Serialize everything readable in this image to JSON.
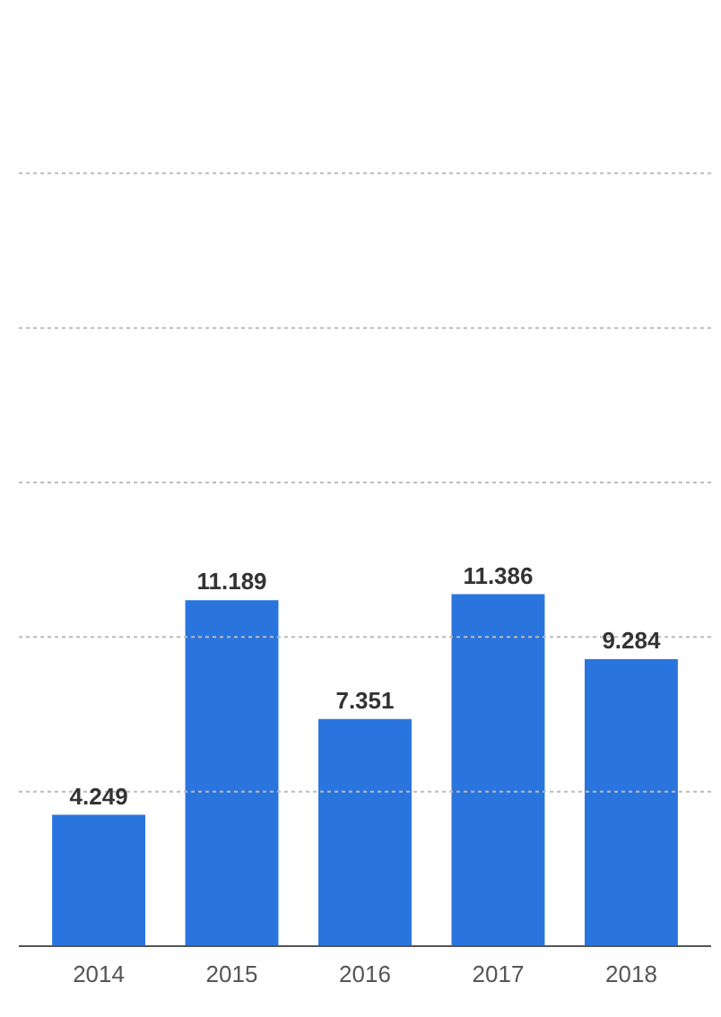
{
  "chart_data": {
    "type": "bar",
    "categories": [
      "2014",
      "2015",
      "2016",
      "2017",
      "2018"
    ],
    "values": [
      4.249,
      11.189,
      7.351,
      11.386,
      9.284
    ],
    "color": "#2a74de",
    "data_labels": true,
    "ref_lines": [
      {
        "axis": "y",
        "value": 5,
        "color": "#bbbbbb",
        "line_style": "dashed"
      },
      {
        "axis": "y",
        "value": 10,
        "color": "#bbbbbb",
        "line_style": "dashed"
      },
      {
        "axis": "y",
        "value": 15,
        "color": "#bbbbbb",
        "line_style": "dashed"
      },
      {
        "axis": "y",
        "value": 20,
        "color": "#bbbbbb",
        "line_style": "dashed"
      },
      {
        "axis": "y",
        "value": 25,
        "color": "#bbbbbb",
        "line_style": "dashed"
      }
    ],
    "tick_labels": "x"
  }
}
